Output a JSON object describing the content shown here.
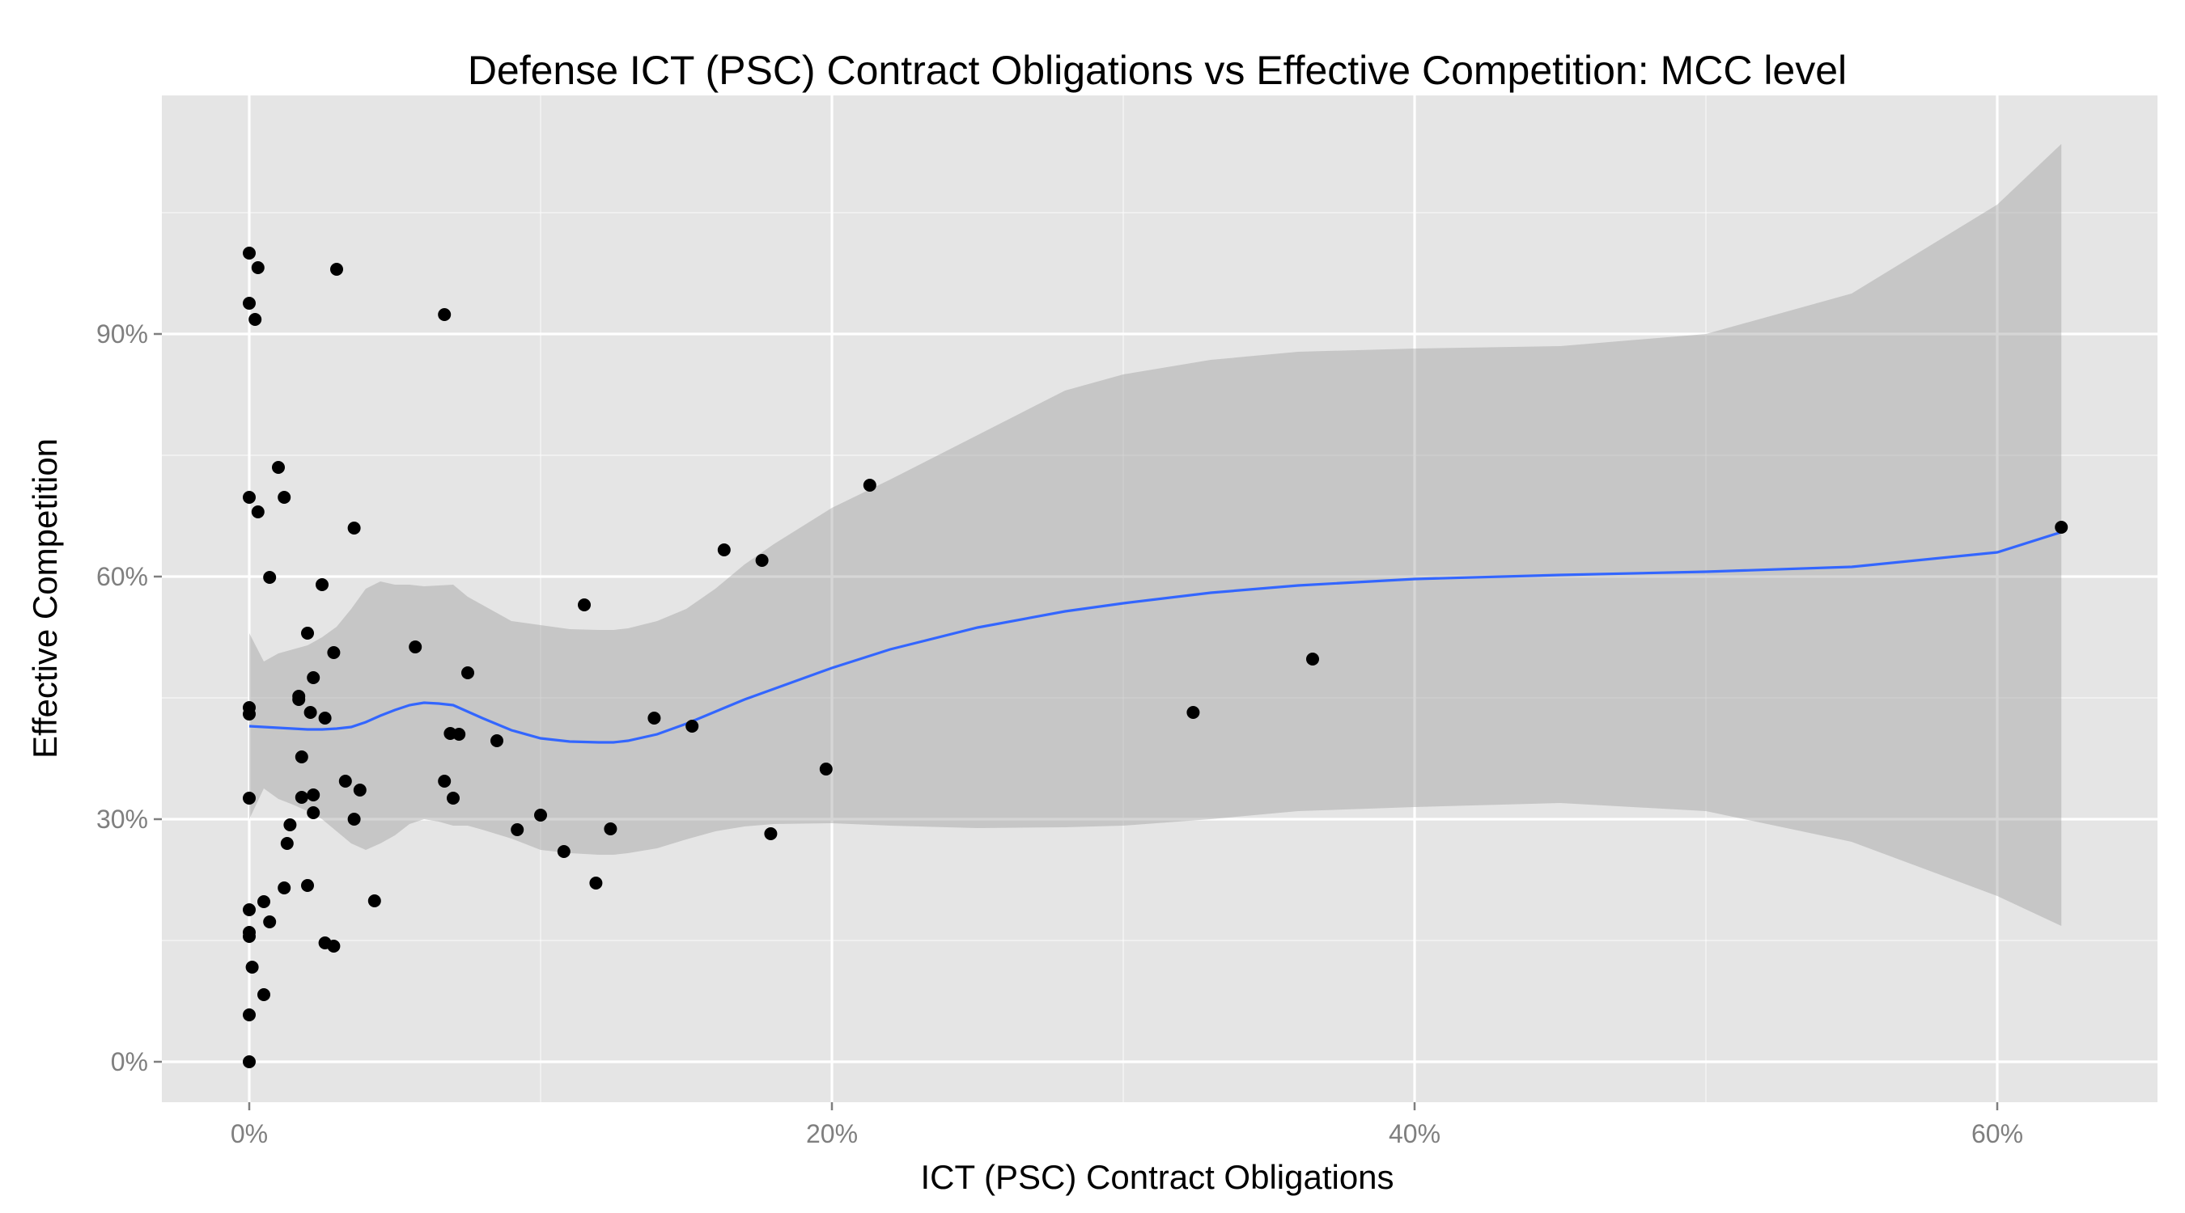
{
  "chart_data": {
    "type": "scatter",
    "title": "Defense ICT (PSC) Contract Obligations vs Effective Competition: MCC level",
    "xlabel": "ICT (PSC) Contract Obligations",
    "ylabel": "Effective Competition",
    "xlim": [
      -0.03,
      0.655
    ],
    "ylim": [
      -0.05,
      1.195
    ],
    "x_ticks": [
      0,
      0.2,
      0.4,
      0.6
    ],
    "x_tick_labels": [
      "0%",
      "20%",
      "40%",
      "60%"
    ],
    "y_ticks": [
      0,
      0.3,
      0.6,
      0.9
    ],
    "y_tick_labels": [
      "0%",
      "30%",
      "60%",
      "90%"
    ],
    "x_minor_ticks": [
      0.1,
      0.3,
      0.5
    ],
    "y_minor_ticks": [
      0.15,
      0.45,
      0.75,
      1.05
    ],
    "grid": true,
    "legend": "none",
    "colors": {
      "panel": "#e5e5e5",
      "grid": "#ffffff",
      "points": "#000000",
      "smooth_line": "#3366ff",
      "ribbon": "#999999"
    },
    "points": [
      [
        0.0,
        1.0
      ],
      [
        0.003,
        0.982
      ],
      [
        0.0,
        0.938
      ],
      [
        0.002,
        0.918
      ],
      [
        0.0,
        0.698
      ],
      [
        0.003,
        0.68
      ],
      [
        0.01,
        0.735
      ],
      [
        0.012,
        0.698
      ],
      [
        0.007,
        0.599
      ],
      [
        0.0,
        0.438
      ],
      [
        0.0,
        0.43
      ],
      [
        0.0,
        0.326
      ],
      [
        0.0,
        0.188
      ],
      [
        0.0,
        0.16
      ],
      [
        0.0,
        0.155
      ],
      [
        0.001,
        0.117
      ],
      [
        0.005,
        0.083
      ],
      [
        0.0,
        0.058
      ],
      [
        0.0,
        0.0
      ],
      [
        0.005,
        0.198
      ],
      [
        0.007,
        0.173
      ],
      [
        0.012,
        0.215
      ],
      [
        0.013,
        0.27
      ],
      [
        0.014,
        0.293
      ],
      [
        0.017,
        0.448
      ],
      [
        0.017,
        0.452
      ],
      [
        0.018,
        0.377
      ],
      [
        0.018,
        0.327
      ],
      [
        0.02,
        0.53
      ],
      [
        0.02,
        0.218
      ],
      [
        0.021,
        0.432
      ],
      [
        0.022,
        0.475
      ],
      [
        0.022,
        0.33
      ],
      [
        0.022,
        0.308
      ],
      [
        0.025,
        0.59
      ],
      [
        0.026,
        0.425
      ],
      [
        0.026,
        0.147
      ],
      [
        0.029,
        0.506
      ],
      [
        0.029,
        0.143
      ],
      [
        0.03,
        0.98
      ],
      [
        0.033,
        0.347
      ],
      [
        0.036,
        0.66
      ],
      [
        0.036,
        0.3
      ],
      [
        0.038,
        0.336
      ],
      [
        0.043,
        0.199
      ],
      [
        0.057,
        0.513
      ],
      [
        0.067,
        0.924
      ],
      [
        0.067,
        0.347
      ],
      [
        0.069,
        0.406
      ],
      [
        0.07,
        0.326
      ],
      [
        0.072,
        0.405
      ],
      [
        0.075,
        0.481
      ],
      [
        0.085,
        0.397
      ],
      [
        0.092,
        0.287
      ],
      [
        0.1,
        0.305
      ],
      [
        0.108,
        0.26
      ],
      [
        0.115,
        0.565
      ],
      [
        0.119,
        0.221
      ],
      [
        0.124,
        0.288
      ],
      [
        0.139,
        0.425
      ],
      [
        0.152,
        0.415
      ],
      [
        0.163,
        0.633
      ],
      [
        0.176,
        0.62
      ],
      [
        0.179,
        0.282
      ],
      [
        0.198,
        0.362
      ],
      [
        0.213,
        0.713
      ],
      [
        0.324,
        0.432
      ],
      [
        0.365,
        0.498
      ],
      [
        0.622,
        0.661
      ]
    ],
    "smooth": {
      "x": [
        0.0,
        0.005,
        0.01,
        0.015,
        0.02,
        0.025,
        0.03,
        0.035,
        0.04,
        0.045,
        0.05,
        0.055,
        0.06,
        0.065,
        0.07,
        0.075,
        0.08,
        0.09,
        0.1,
        0.11,
        0.12,
        0.125,
        0.13,
        0.14,
        0.15,
        0.16,
        0.17,
        0.18,
        0.2,
        0.22,
        0.25,
        0.28,
        0.3,
        0.33,
        0.36,
        0.4,
        0.45,
        0.5,
        0.55,
        0.6,
        0.622
      ],
      "y": [
        0.415,
        0.414,
        0.413,
        0.412,
        0.411,
        0.411,
        0.412,
        0.414,
        0.42,
        0.428,
        0.435,
        0.441,
        0.444,
        0.443,
        0.441,
        0.433,
        0.425,
        0.41,
        0.4,
        0.396,
        0.395,
        0.395,
        0.397,
        0.405,
        0.418,
        0.433,
        0.448,
        0.461,
        0.487,
        0.51,
        0.537,
        0.557,
        0.567,
        0.58,
        0.589,
        0.597,
        0.602,
        0.606,
        0.612,
        0.63,
        0.655
      ],
      "upper": [
        0.53,
        0.495,
        0.505,
        0.51,
        0.515,
        0.525,
        0.538,
        0.56,
        0.585,
        0.594,
        0.59,
        0.59,
        0.588,
        0.589,
        0.59,
        0.575,
        0.565,
        0.545,
        0.54,
        0.535,
        0.534,
        0.534,
        0.536,
        0.545,
        0.56,
        0.585,
        0.615,
        0.64,
        0.685,
        0.72,
        0.775,
        0.83,
        0.85,
        0.868,
        0.878,
        0.882,
        0.885,
        0.9,
        0.95,
        1.06,
        1.135
      ],
      "lower": [
        0.3,
        0.338,
        0.325,
        0.318,
        0.31,
        0.3,
        0.285,
        0.27,
        0.262,
        0.27,
        0.28,
        0.294,
        0.3,
        0.297,
        0.292,
        0.292,
        0.287,
        0.276,
        0.262,
        0.258,
        0.256,
        0.256,
        0.258,
        0.264,
        0.275,
        0.285,
        0.291,
        0.294,
        0.295,
        0.292,
        0.289,
        0.29,
        0.292,
        0.3,
        0.31,
        0.315,
        0.32,
        0.31,
        0.272,
        0.205,
        0.168
      ]
    }
  }
}
